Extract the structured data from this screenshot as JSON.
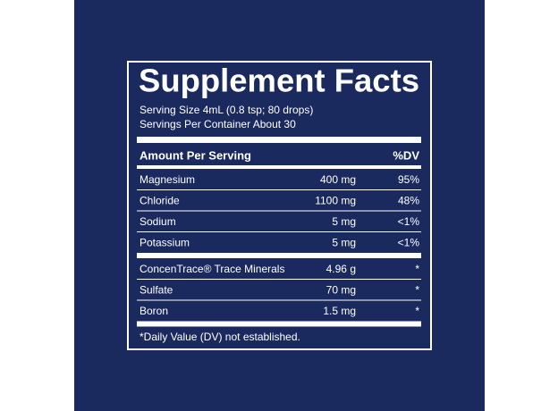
{
  "panel": {
    "title": "Supplement Facts",
    "serving_size": "Serving Size 4mL (0.8 tsp; 80 drops)",
    "servings_per_container": "Servings Per Container About 30",
    "header": {
      "amount": "Amount Per Serving",
      "dv": "%DV"
    },
    "groups": [
      [
        [
          "Magnesium",
          "400 mg",
          "95%"
        ],
        [
          "Chloride",
          "1100 mg",
          "48%"
        ],
        [
          "Sodium",
          "5 mg",
          "<1%"
        ],
        [
          "Potassium",
          "5 mg",
          "<1%"
        ]
      ],
      [
        [
          "ConcenTrace® Trace Minerals",
          "4.96 g",
          "*"
        ],
        [
          "Sulfate",
          "70 mg",
          "*"
        ],
        [
          "Boron",
          "1.5 mg",
          "*"
        ]
      ]
    ],
    "footnote": "*Daily Value (DV) not established."
  }
}
